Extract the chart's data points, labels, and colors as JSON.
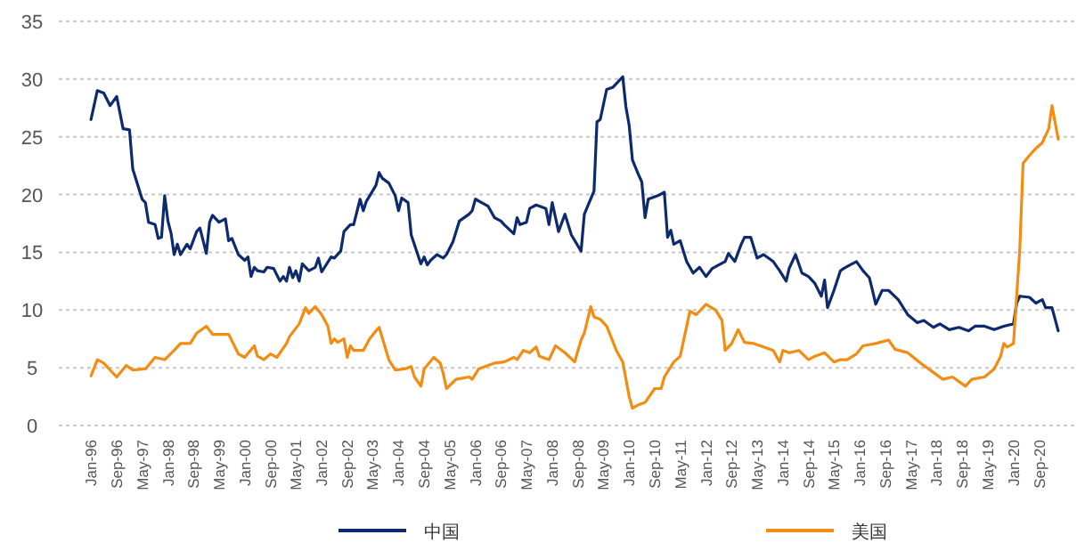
{
  "chart_data": {
    "type": "line",
    "ylim": [
      0,
      35
    ],
    "yticks": [
      0,
      5,
      10,
      15,
      20,
      25,
      30,
      35
    ],
    "grid": "y",
    "legend": "bottom",
    "xlim": [
      "1995-03",
      "2021-08"
    ],
    "xticks": [
      {
        "value": "1996-01",
        "label": "Jan-96"
      },
      {
        "value": "1996-09",
        "label": "Sep-96"
      },
      {
        "value": "1997-05",
        "label": "May-97"
      },
      {
        "value": "1998-01",
        "label": "Jan-98"
      },
      {
        "value": "1998-09",
        "label": "Sep-98"
      },
      {
        "value": "1999-05",
        "label": "May-99"
      },
      {
        "value": "2000-01",
        "label": "Jan-00"
      },
      {
        "value": "2000-09",
        "label": "Sep-00"
      },
      {
        "value": "2001-05",
        "label": "May-01"
      },
      {
        "value": "2002-01",
        "label": "Jan-02"
      },
      {
        "value": "2002-09",
        "label": "Sep-02"
      },
      {
        "value": "2003-05",
        "label": "May-03"
      },
      {
        "value": "2004-01",
        "label": "Jan-04"
      },
      {
        "value": "2004-09",
        "label": "Sep-04"
      },
      {
        "value": "2005-05",
        "label": "May-05"
      },
      {
        "value": "2006-01",
        "label": "Jan-06"
      },
      {
        "value": "2006-09",
        "label": "Sep-06"
      },
      {
        "value": "2007-05",
        "label": "May-07"
      },
      {
        "value": "2008-01",
        "label": "Jan-08"
      },
      {
        "value": "2008-09",
        "label": "Sep-08"
      },
      {
        "value": "2009-05",
        "label": "May-09"
      },
      {
        "value": "2010-01",
        "label": "Jan-10"
      },
      {
        "value": "2010-09",
        "label": "Sep-10"
      },
      {
        "value": "2011-05",
        "label": "May-11"
      },
      {
        "value": "2012-01",
        "label": "Jan-12"
      },
      {
        "value": "2012-09",
        "label": "Sep-12"
      },
      {
        "value": "2013-05",
        "label": "May-13"
      },
      {
        "value": "2014-01",
        "label": "Jan-14"
      },
      {
        "value": "2014-09",
        "label": "Sep-14"
      },
      {
        "value": "2015-05",
        "label": "May-15"
      },
      {
        "value": "2016-01",
        "label": "Jan-16"
      },
      {
        "value": "2016-09",
        "label": "Sep-16"
      },
      {
        "value": "2017-05",
        "label": "May-17"
      },
      {
        "value": "2018-01",
        "label": "Jan-18"
      },
      {
        "value": "2018-09",
        "label": "Sep-18"
      },
      {
        "value": "2019-05",
        "label": "May-19"
      },
      {
        "value": "2020-01",
        "label": "Jan-20"
      },
      {
        "value": "2020-09",
        "label": "Sep-20"
      }
    ],
    "series": [
      {
        "name": "中国",
        "color": "#0d2a6e",
        "x": [
          "1996-01",
          "1996-03",
          "1996-05",
          "1996-07",
          "1996-09",
          "1996-11",
          "1997-01",
          "1997-02",
          "1997-03",
          "1997-05",
          "1997-06",
          "1997-07",
          "1997-09",
          "1997-10",
          "1997-11",
          "1997-12",
          "1998-01",
          "1998-02",
          "1998-03",
          "1998-04",
          "1998-05",
          "1998-07",
          "1998-08",
          "1998-10",
          "1998-11",
          "1999-01",
          "1999-02",
          "1999-03",
          "1999-05",
          "1999-07",
          "1999-08",
          "1999-09",
          "1999-11",
          "2000-01",
          "2000-02",
          "2000-03",
          "2000-04",
          "2000-05",
          "2000-07",
          "2000-08",
          "2000-10",
          "2000-12",
          "2001-01",
          "2001-02",
          "2001-03",
          "2001-04",
          "2001-05",
          "2001-06",
          "2001-07",
          "2001-09",
          "2001-11",
          "2001-12",
          "2002-01",
          "2002-04",
          "2002-05",
          "2002-07",
          "2002-08",
          "2002-10",
          "2002-11",
          "2003-01",
          "2003-02",
          "2003-03",
          "2003-06",
          "2003-07",
          "2003-08",
          "2003-10",
          "2003-12",
          "2004-01",
          "2004-02",
          "2004-04",
          "2004-05",
          "2004-08",
          "2004-09",
          "2004-10",
          "2004-11",
          "2005-01",
          "2005-03",
          "2005-04",
          "2005-06",
          "2005-08",
          "2005-11",
          "2005-12",
          "2006-01",
          "2006-03",
          "2006-05",
          "2006-07",
          "2006-09",
          "2006-10",
          "2007-01",
          "2007-02",
          "2007-03",
          "2007-05",
          "2007-06",
          "2007-08",
          "2007-11",
          "2007-12",
          "2008-01",
          "2008-03",
          "2008-05",
          "2008-07",
          "2008-10",
          "2008-11",
          "2009-02",
          "2009-03",
          "2009-04",
          "2009-06",
          "2009-08",
          "2009-11",
          "2009-12",
          "2010-01",
          "2010-02",
          "2010-04",
          "2010-05",
          "2010-06",
          "2010-07",
          "2010-10",
          "2010-12",
          "2011-01",
          "2011-02",
          "2011-03",
          "2011-05",
          "2011-07",
          "2011-09",
          "2011-11",
          "2012-01",
          "2012-03",
          "2012-05",
          "2012-07",
          "2012-08",
          "2012-10",
          "2012-12",
          "2013-01",
          "2013-03",
          "2013-05",
          "2013-07",
          "2013-10",
          "2013-12",
          "2014-02",
          "2014-03",
          "2014-05",
          "2014-07",
          "2014-09",
          "2014-11",
          "2015-01",
          "2015-02",
          "2015-03",
          "2015-05",
          "2015-07",
          "2015-08",
          "2015-10",
          "2015-12",
          "2016-02",
          "2016-04",
          "2016-05",
          "2016-06",
          "2016-08",
          "2016-10",
          "2017-01",
          "2017-04",
          "2017-07",
          "2017-09",
          "2017-12",
          "2018-02",
          "2018-05",
          "2018-08",
          "2018-11",
          "2019-01",
          "2019-04",
          "2019-07",
          "2019-10",
          "2020-01",
          "2020-02",
          "2020-03",
          "2020-06",
          "2020-08",
          "2020-10",
          "2020-11",
          "2021-01",
          "2021-03"
        ],
        "values": [
          26.5,
          29.0,
          28.8,
          27.7,
          28.5,
          25.7,
          25.6,
          22.2,
          21.4,
          19.6,
          19.3,
          17.6,
          17.4,
          16.2,
          16.3,
          19.9,
          17.7,
          16.6,
          14.8,
          15.7,
          14.8,
          15.7,
          15.3,
          16.8,
          17.1,
          14.9,
          17.6,
          18.2,
          17.6,
          17.9,
          16.0,
          16.2,
          14.8,
          14.3,
          14.6,
          12.9,
          13.7,
          13.4,
          13.3,
          13.7,
          13.6,
          12.5,
          12.9,
          12.5,
          13.7,
          12.8,
          13.4,
          12.5,
          14.0,
          13.4,
          13.7,
          14.5,
          13.3,
          14.6,
          14.5,
          15.1,
          16.8,
          17.4,
          17.4,
          19.6,
          18.6,
          19.4,
          20.8,
          21.9,
          21.4,
          21.0,
          19.9,
          18.6,
          19.7,
          19.3,
          16.5,
          14.0,
          14.6,
          13.9,
          14.3,
          14.8,
          14.5,
          14.8,
          15.9,
          17.7,
          18.3,
          18.6,
          19.6,
          19.3,
          19.0,
          18.0,
          17.7,
          17.4,
          16.6,
          18.0,
          17.4,
          17.6,
          18.8,
          19.1,
          18.8,
          17.4,
          19.3,
          16.8,
          18.3,
          16.5,
          15.1,
          18.3,
          20.3,
          26.3,
          26.5,
          29.1,
          29.3,
          30.2,
          27.6,
          26.0,
          23.0,
          21.7,
          21.1,
          18.0,
          19.6,
          19.9,
          20.2,
          16.3,
          16.9,
          15.7,
          16.0,
          14.2,
          13.2,
          13.7,
          12.9,
          13.6,
          13.9,
          14.2,
          14.9,
          14.2,
          15.7,
          16.3,
          16.3,
          14.5,
          14.8,
          14.2,
          13.4,
          12.5,
          13.6,
          14.8,
          13.2,
          12.9,
          12.3,
          11.2,
          12.6,
          10.2,
          11.7,
          13.4,
          13.6,
          13.9,
          14.2,
          13.4,
          12.8,
          11.7,
          10.5,
          11.7,
          11.7,
          10.9,
          9.6,
          8.9,
          9.1,
          8.5,
          8.8,
          8.3,
          8.5,
          8.2,
          8.6,
          8.6,
          8.3,
          8.6,
          8.8,
          10.6,
          11.2,
          11.1,
          10.6,
          10.9,
          10.2,
          10.2,
          8.2
        ]
      },
      {
        "name": "美国",
        "color": "#f28c12",
        "x": [
          "1996-01",
          "1996-03",
          "1996-05",
          "1996-07",
          "1996-09",
          "1996-12",
          "1997-02",
          "1997-06",
          "1997-09",
          "1997-12",
          "1998-03",
          "1998-05",
          "1998-08",
          "1998-10",
          "1999-01",
          "1999-03",
          "1999-06",
          "1999-08",
          "1999-11",
          "2000-01",
          "2000-04",
          "2000-05",
          "2000-07",
          "2000-09",
          "2000-11",
          "2001-02",
          "2001-03",
          "2001-06",
          "2001-08",
          "2001-09",
          "2001-11",
          "2002-01",
          "2002-03",
          "2002-04",
          "2002-05",
          "2002-06",
          "2002-08",
          "2002-09",
          "2002-10",
          "2002-11",
          "2003-02",
          "2003-04",
          "2003-06",
          "2003-07",
          "2003-10",
          "2003-12",
          "2004-03",
          "2004-05",
          "2004-06",
          "2004-08",
          "2004-09",
          "2004-12",
          "2005-02",
          "2005-03",
          "2005-04",
          "2005-07",
          "2005-11",
          "2005-12",
          "2006-02",
          "2006-05",
          "2006-07",
          "2006-10",
          "2007-01",
          "2007-02",
          "2007-04",
          "2007-06",
          "2007-08",
          "2007-09",
          "2007-12",
          "2008-02",
          "2008-05",
          "2008-08",
          "2008-10",
          "2008-11",
          "2009-01",
          "2009-02",
          "2009-04",
          "2009-06",
          "2009-09",
          "2009-11",
          "2010-01",
          "2010-02",
          "2010-04",
          "2010-06",
          "2010-09",
          "2010-11",
          "2010-12",
          "2011-03",
          "2011-05",
          "2011-08",
          "2011-10",
          "2012-01",
          "2012-04",
          "2012-06",
          "2012-07",
          "2012-09",
          "2012-11",
          "2013-01",
          "2013-04",
          "2013-07",
          "2013-10",
          "2013-12",
          "2014-01",
          "2014-03",
          "2014-06",
          "2014-09",
          "2014-11",
          "2015-02",
          "2015-05",
          "2015-07",
          "2015-09",
          "2015-12",
          "2016-02",
          "2016-06",
          "2016-10",
          "2016-12",
          "2017-04",
          "2017-08",
          "2017-12",
          "2018-03",
          "2018-06",
          "2018-10",
          "2018-12",
          "2019-04",
          "2019-07",
          "2019-09",
          "2019-10",
          "2019-11",
          "2020-01",
          "2020-03",
          "2020-04",
          "2020-06",
          "2020-08",
          "2020-10",
          "2020-12",
          "2021-01",
          "2021-03"
        ],
        "values": [
          4.3,
          5.7,
          5.4,
          4.8,
          4.2,
          5.2,
          4.8,
          4.9,
          5.9,
          5.7,
          6.5,
          7.1,
          7.1,
          8.0,
          8.6,
          7.9,
          7.9,
          7.9,
          6.2,
          5.9,
          6.9,
          6.0,
          5.7,
          6.2,
          5.9,
          7.1,
          7.7,
          8.8,
          10.2,
          9.7,
          10.3,
          9.6,
          8.6,
          7.1,
          7.5,
          7.2,
          7.5,
          5.9,
          6.9,
          6.5,
          6.5,
          7.5,
          8.2,
          8.5,
          5.7,
          4.8,
          4.9,
          5.1,
          4.2,
          3.4,
          4.9,
          5.9,
          5.4,
          4.5,
          3.2,
          4.0,
          4.2,
          4.0,
          4.9,
          5.2,
          5.4,
          5.5,
          5.9,
          5.7,
          6.5,
          6.3,
          6.8,
          6.0,
          5.7,
          6.9,
          6.3,
          5.5,
          7.4,
          8.0,
          10.3,
          9.4,
          9.2,
          8.6,
          6.5,
          5.5,
          2.5,
          1.5,
          1.8,
          2.0,
          3.2,
          3.2,
          4.2,
          5.5,
          6.0,
          9.9,
          9.6,
          10.5,
          10.0,
          9.1,
          6.5,
          7.1,
          8.3,
          7.2,
          7.1,
          6.8,
          6.5,
          5.5,
          6.5,
          6.3,
          6.5,
          5.7,
          6.0,
          6.3,
          5.5,
          5.7,
          5.7,
          6.2,
          6.9,
          7.1,
          7.4,
          6.6,
          6.3,
          5.4,
          4.6,
          4.0,
          4.2,
          3.4,
          4.0,
          4.2,
          4.9,
          6.0,
          7.1,
          6.8,
          7.1,
          15.3,
          22.7,
          23.4,
          24.0,
          24.5,
          25.7,
          27.7,
          24.8
        ]
      }
    ]
  }
}
